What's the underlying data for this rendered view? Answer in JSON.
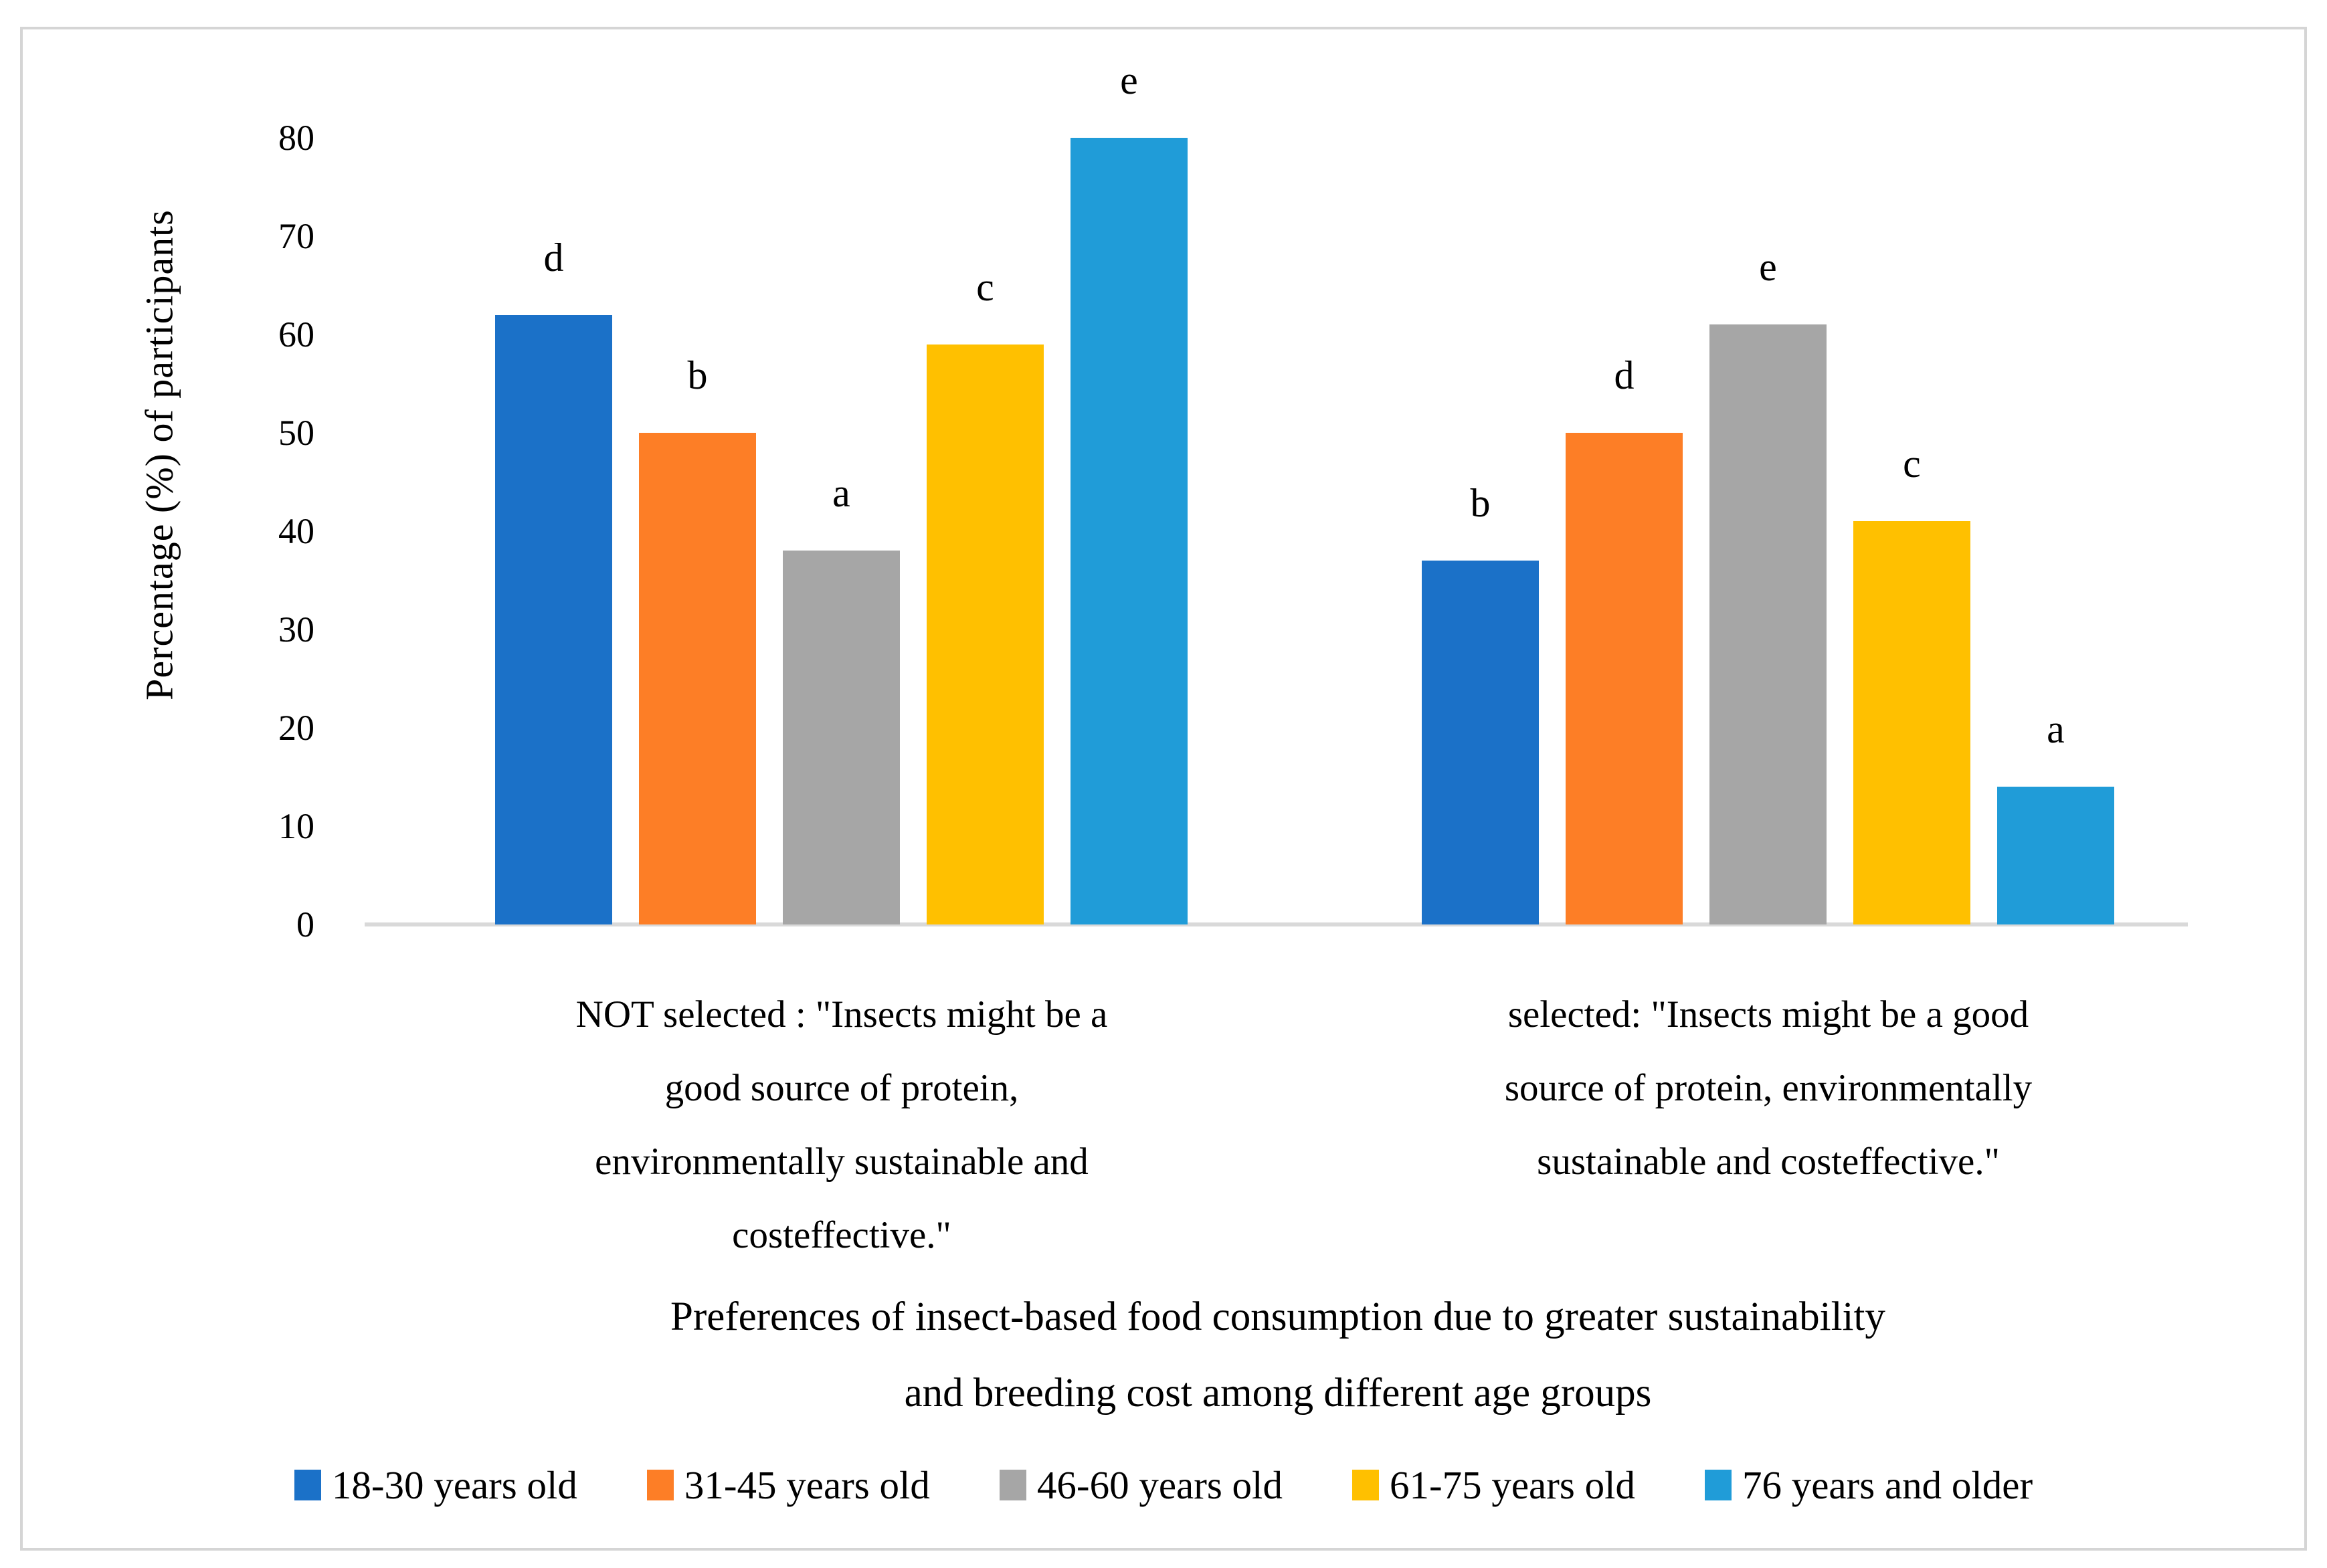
{
  "figure": {
    "background": "#FFFFFF",
    "border_color": "#D5D5D5",
    "axis_line_color": "#D9D9D9"
  },
  "chart_data": {
    "type": "bar",
    "title": "",
    "ylabel": "Percentage (%) of participants",
    "xlabel_lines": [
      "Preferences of insect-based food consumption due to greater sustainability",
      "and breeding cost among different age groups"
    ],
    "ylim": [
      0,
      80
    ],
    "yticks": [
      0,
      10,
      20,
      30,
      40,
      50,
      60,
      70,
      80
    ],
    "grid": false,
    "legend_position": "bottom",
    "groups": [
      {
        "label_lines": [
          "NOT selected : \"Insects might be a",
          "good source of protein,",
          "environmentally sustainable and",
          "costeffective.\""
        ]
      },
      {
        "label_lines": [
          "selected: \"Insects might be a good",
          "source of protein, environmentally",
          "sustainable and costeffective.\""
        ]
      }
    ],
    "series": [
      {
        "name": "18-30 years old",
        "color": "#1B71C8",
        "values": [
          62,
          37
        ],
        "bar_labels": [
          "d",
          "b"
        ]
      },
      {
        "name": "31-45 years old",
        "color": "#FD7E26",
        "values": [
          50,
          50
        ],
        "bar_labels": [
          "b",
          "d"
        ]
      },
      {
        "name": "46-60 years old",
        "color": "#A6A6A6",
        "values": [
          38,
          61
        ],
        "bar_labels": [
          "a",
          "e"
        ]
      },
      {
        "name": "61-75 years old",
        "color": "#FFC000",
        "values": [
          59,
          41
        ],
        "bar_labels": [
          "c",
          "c"
        ]
      },
      {
        "name": "76 years and older",
        "color": "#209CD8",
        "values": [
          80,
          14
        ],
        "bar_labels": [
          "e",
          "a"
        ]
      }
    ]
  }
}
